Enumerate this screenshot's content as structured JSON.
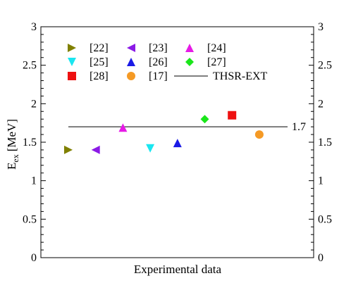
{
  "chart_data": {
    "type": "scatter",
    "xlabel": "Experimental data",
    "ylabel_main": "E",
    "ylabel_sub": "ex",
    "ylabel_unit": "[MeV]",
    "ylim": [
      0,
      3
    ],
    "yticks": [
      0,
      0.5,
      1,
      1.5,
      2,
      2.5,
      3
    ],
    "ytick_labels": [
      "0",
      "0.5",
      "1",
      "1.5",
      "2",
      "2.5",
      "3"
    ],
    "grid": false,
    "legend_position": "top-left",
    "series": [
      {
        "name": "[22]",
        "marker": "triangle-right",
        "color": "#808000",
        "x": 1,
        "y": 1.4
      },
      {
        "name": "[23]",
        "marker": "triangle-left",
        "color": "#8b1ae6",
        "x": 2,
        "y": 1.4
      },
      {
        "name": "[24]",
        "marker": "triangle-up",
        "color": "#e61ae6",
        "x": 3,
        "y": 1.69
      },
      {
        "name": "[25]",
        "marker": "triangle-down",
        "color": "#1ae6f0",
        "x": 4,
        "y": 1.42
      },
      {
        "name": "[26]",
        "marker": "triangle-up",
        "color": "#1a1ae6",
        "x": 5,
        "y": 1.49
      },
      {
        "name": "[27]",
        "marker": "diamond",
        "color": "#1ae61a",
        "x": 6,
        "y": 1.8
      },
      {
        "name": "[28]",
        "marker": "square",
        "color": "#ee1111",
        "x": 7,
        "y": 1.85
      },
      {
        "name": "[17]",
        "marker": "circle",
        "color": "#f59a25",
        "x": 8,
        "y": 1.6
      }
    ],
    "reference_line": {
      "name": "THSR-EXT",
      "y": 1.7,
      "label": "1.7",
      "color": "#555555"
    }
  }
}
